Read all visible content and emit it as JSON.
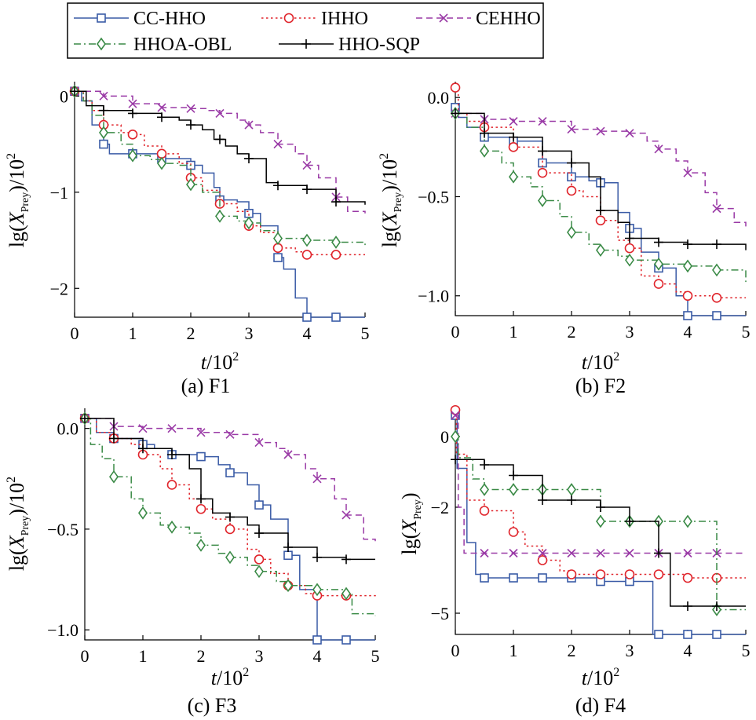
{
  "legend": {
    "entries": [
      "CC-HHO",
      "IHHO",
      "CEHHO",
      "HHOA-OBL",
      "HHO-SQP"
    ]
  },
  "series_styles": [
    {
      "name": "CC-HHO",
      "color": "#3a5ba6",
      "marker": "square",
      "dash": "solid"
    },
    {
      "name": "IHHO",
      "color": "#e0242b",
      "marker": "circle",
      "dash": "dotted"
    },
    {
      "name": "CEHHO",
      "color": "#9a3aa6",
      "marker": "x",
      "dash": "dashed"
    },
    {
      "name": "HHOA-OBL",
      "color": "#3a8a46",
      "marker": "diamond",
      "dash": "dashdot"
    },
    {
      "name": "HHO-SQP",
      "color": "#000000",
      "marker": "plus",
      "dash": "solid"
    }
  ],
  "chart_data": [
    {
      "type": "line",
      "caption": "(a) F1",
      "xlabel_var": "t",
      "xlabel_unit": "/10",
      "xlabel_exp": "2",
      "ylabel": "lg(X_Prey)/10^2",
      "ylabel_pre": "lg(",
      "ylabel_var": "X",
      "ylabel_sub": "Prey",
      "ylabel_post": ")/10",
      "ylabel_exp": "2",
      "xlim": [
        0,
        5
      ],
      "ylim": [
        -2.3,
        0.15
      ],
      "xticks": [
        0,
        1,
        2,
        3,
        4,
        5
      ],
      "xtick_labels": [
        "0",
        "1",
        "2",
        "3",
        "4",
        "5"
      ],
      "yticks": [
        0,
        -1,
        -2
      ],
      "ytick_labels": [
        "0",
        "−1",
        "−2"
      ],
      "series": [
        {
          "name": "CC-HHO",
          "x": [
            0,
            0.12,
            0.3,
            0.5,
            0.6,
            1.0,
            1.5,
            2.0,
            2.2,
            2.4,
            2.5,
            2.8,
            3.0,
            3.2,
            3.5,
            3.6,
            3.8,
            4.0,
            4.5,
            5.0
          ],
          "y": [
            0.05,
            -0.05,
            -0.3,
            -0.5,
            -0.6,
            -0.6,
            -0.65,
            -0.72,
            -0.8,
            -0.95,
            -1.08,
            -1.1,
            -1.22,
            -1.35,
            -1.68,
            -1.8,
            -2.1,
            -2.3,
            -2.3,
            -2.3
          ]
        },
        {
          "name": "IHHO",
          "x": [
            0,
            0.15,
            0.3,
            0.5,
            0.8,
            1.0,
            1.2,
            1.5,
            1.8,
            2.0,
            2.2,
            2.5,
            2.8,
            3.0,
            3.2,
            3.5,
            3.8,
            4.0,
            4.5,
            5.0
          ],
          "y": [
            0.05,
            -0.05,
            -0.15,
            -0.3,
            -0.38,
            -0.4,
            -0.52,
            -0.6,
            -0.7,
            -0.85,
            -0.98,
            -1.12,
            -1.2,
            -1.35,
            -1.42,
            -1.58,
            -1.62,
            -1.65,
            -1.65,
            -1.65
          ]
        },
        {
          "name": "CEHHO",
          "x": [
            0,
            0.5,
            1.0,
            1.5,
            2.0,
            2.3,
            2.5,
            2.8,
            3.0,
            3.2,
            3.5,
            3.8,
            4.0,
            4.2,
            4.5,
            4.7,
            5.0
          ],
          "y": [
            0.05,
            0.0,
            -0.08,
            -0.12,
            -0.13,
            -0.15,
            -0.18,
            -0.25,
            -0.3,
            -0.38,
            -0.5,
            -0.6,
            -0.72,
            -0.85,
            -1.05,
            -1.2,
            -1.22
          ]
        },
        {
          "name": "HHOA-OBL",
          "x": [
            0,
            0.15,
            0.3,
            0.5,
            0.8,
            1.0,
            1.3,
            1.5,
            1.8,
            2.0,
            2.2,
            2.5,
            2.8,
            3.0,
            3.2,
            3.5,
            4.0,
            4.5,
            5.0
          ],
          "y": [
            0.05,
            -0.05,
            -0.2,
            -0.38,
            -0.5,
            -0.62,
            -0.66,
            -0.7,
            -0.72,
            -0.92,
            -1.0,
            -1.25,
            -1.3,
            -1.32,
            -1.4,
            -1.48,
            -1.5,
            -1.52,
            -1.55
          ]
        },
        {
          "name": "HHO-SQP",
          "x": [
            0,
            0.2,
            0.5,
            1.0,
            1.5,
            1.8,
            2.0,
            2.2,
            2.4,
            2.6,
            2.8,
            3.0,
            3.3,
            3.5,
            4.0,
            4.5,
            5.0
          ],
          "y": [
            0.05,
            -0.1,
            -0.15,
            -0.18,
            -0.22,
            -0.25,
            -0.3,
            -0.35,
            -0.45,
            -0.52,
            -0.6,
            -0.65,
            -0.9,
            -0.93,
            -0.97,
            -1.1,
            -1.13
          ]
        }
      ]
    },
    {
      "type": "line",
      "caption": "(b) F2",
      "xlabel_var": "t",
      "xlabel_unit": "/10",
      "xlabel_exp": "2",
      "ylabel": "lg(X_Prey)/10^2",
      "ylabel_pre": "lg(",
      "ylabel_var": "X",
      "ylabel_sub": "Prey",
      "ylabel_post": ")/10",
      "ylabel_exp": "2",
      "xlim": [
        0,
        5
      ],
      "ylim": [
        -1.1,
        0.08
      ],
      "xticks": [
        0,
        1,
        2,
        3,
        4,
        5
      ],
      "xtick_labels": [
        "0",
        "1",
        "2",
        "3",
        "4",
        "5"
      ],
      "yticks": [
        0,
        -0.5,
        -1.0
      ],
      "ytick_labels": [
        "0.0",
        "−0.5",
        "−1.0"
      ],
      "series": [
        {
          "name": "CC-HHO",
          "x": [
            0,
            0.05,
            0.2,
            0.5,
            1.0,
            1.5,
            2.0,
            2.3,
            2.5,
            2.8,
            3.0,
            3.2,
            3.5,
            3.8,
            4.0,
            4.5,
            5.0
          ],
          "y": [
            -0.05,
            -0.1,
            -0.15,
            -0.2,
            -0.22,
            -0.33,
            -0.4,
            -0.42,
            -0.43,
            -0.58,
            -0.66,
            -0.78,
            -0.86,
            -1.0,
            -1.1,
            -1.1,
            -1.1
          ]
        },
        {
          "name": "IHHO",
          "x": [
            0,
            0.05,
            0.2,
            0.5,
            1.0,
            1.5,
            2.0,
            2.2,
            2.5,
            2.8,
            3.0,
            3.2,
            3.5,
            3.8,
            4.0,
            4.5,
            5.0
          ],
          "y": [
            0.05,
            -0.08,
            -0.12,
            -0.15,
            -0.25,
            -0.38,
            -0.47,
            -0.5,
            -0.62,
            -0.72,
            -0.76,
            -0.9,
            -0.94,
            -0.98,
            -1.0,
            -1.01,
            -1.01
          ]
        },
        {
          "name": "CEHHO",
          "x": [
            0,
            0.5,
            1.0,
            1.5,
            2.0,
            2.5,
            3.0,
            3.3,
            3.5,
            3.8,
            4.0,
            4.3,
            4.5,
            4.8,
            5.0
          ],
          "y": [
            -0.08,
            -0.11,
            -0.12,
            -0.12,
            -0.16,
            -0.17,
            -0.18,
            -0.22,
            -0.26,
            -0.32,
            -0.38,
            -0.48,
            -0.56,
            -0.63,
            -0.65
          ]
        },
        {
          "name": "HHOA-OBL",
          "x": [
            0,
            0.2,
            0.5,
            0.8,
            1.0,
            1.3,
            1.5,
            1.8,
            2.0,
            2.3,
            2.5,
            2.8,
            3.0,
            3.5,
            4.0,
            4.5,
            5.0
          ],
          "y": [
            -0.08,
            -0.15,
            -0.27,
            -0.33,
            -0.4,
            -0.45,
            -0.52,
            -0.6,
            -0.68,
            -0.74,
            -0.77,
            -0.8,
            -0.82,
            -0.84,
            -0.85,
            -0.87,
            -0.93
          ]
        },
        {
          "name": "HHO-SQP",
          "x": [
            0,
            0.5,
            1.0,
            1.5,
            2.0,
            2.3,
            2.5,
            2.8,
            3.0,
            3.5,
            4.0,
            4.5,
            5.0
          ],
          "y": [
            -0.08,
            -0.18,
            -0.2,
            -0.27,
            -0.33,
            -0.4,
            -0.57,
            -0.63,
            -0.71,
            -0.73,
            -0.74,
            -0.74,
            -0.77
          ]
        }
      ]
    },
    {
      "type": "line",
      "caption": "(c) F3",
      "xlabel_var": "t",
      "xlabel_unit": "/10",
      "xlabel_exp": "2",
      "ylabel": "lg(X_Prey)/10^2",
      "ylabel_pre": "lg(",
      "ylabel_var": "X",
      "ylabel_sub": "Prey",
      "ylabel_post": ")/10",
      "ylabel_exp": "2",
      "xlim": [
        0,
        5
      ],
      "ylim": [
        -1.05,
        0.1
      ],
      "xticks": [
        0,
        1,
        2,
        3,
        4,
        5
      ],
      "xtick_labels": [
        "0",
        "1",
        "2",
        "3",
        "4",
        "5"
      ],
      "yticks": [
        0,
        -0.5,
        -1.0
      ],
      "ytick_labels": [
        "0.0",
        "−0.5",
        "−1.0"
      ],
      "series": [
        {
          "name": "CC-HHO",
          "x": [
            0,
            0.2,
            0.5,
            1.0,
            1.2,
            1.5,
            2.0,
            2.3,
            2.5,
            2.8,
            3.0,
            3.2,
            3.5,
            3.7,
            4.0,
            4.5,
            5.0
          ],
          "y": [
            0.05,
            -0.02,
            -0.05,
            -0.08,
            -0.1,
            -0.13,
            -0.14,
            -0.18,
            -0.22,
            -0.28,
            -0.38,
            -0.45,
            -0.63,
            -0.8,
            -1.05,
            -1.05,
            -1.05
          ]
        },
        {
          "name": "IHHO",
          "x": [
            0,
            0.2,
            0.5,
            0.8,
            1.0,
            1.3,
            1.5,
            1.8,
            2.0,
            2.2,
            2.5,
            2.8,
            3.0,
            3.2,
            3.5,
            3.8,
            4.0,
            4.5,
            5.0
          ],
          "y": [
            0.05,
            -0.02,
            -0.05,
            -0.08,
            -0.13,
            -0.2,
            -0.28,
            -0.35,
            -0.4,
            -0.45,
            -0.5,
            -0.6,
            -0.65,
            -0.72,
            -0.78,
            -0.82,
            -0.83,
            -0.83,
            -0.84
          ]
        },
        {
          "name": "CEHHO",
          "x": [
            0,
            0.5,
            1.0,
            1.5,
            2.0,
            2.5,
            3.0,
            3.3,
            3.5,
            3.8,
            4.0,
            4.3,
            4.5,
            4.8,
            5.0
          ],
          "y": [
            0.05,
            0.01,
            0.0,
            0.0,
            -0.02,
            -0.03,
            -0.07,
            -0.1,
            -0.13,
            -0.2,
            -0.25,
            -0.35,
            -0.43,
            -0.55,
            -0.56
          ]
        },
        {
          "name": "HHOA-OBL",
          "x": [
            0,
            0.1,
            0.3,
            0.5,
            0.8,
            1.0,
            1.3,
            1.5,
            1.8,
            2.0,
            2.3,
            2.5,
            2.8,
            3.0,
            3.3,
            3.5,
            4.0,
            4.5,
            4.6,
            5.0
          ],
          "y": [
            0.05,
            -0.08,
            -0.15,
            -0.24,
            -0.35,
            -0.42,
            -0.48,
            -0.49,
            -0.52,
            -0.58,
            -0.62,
            -0.64,
            -0.68,
            -0.71,
            -0.76,
            -0.78,
            -0.8,
            -0.82,
            -0.92,
            -0.93
          ]
        },
        {
          "name": "HHO-SQP",
          "x": [
            0,
            0.5,
            1.0,
            1.5,
            1.8,
            2.0,
            2.2,
            2.5,
            2.8,
            3.0,
            3.5,
            4.0,
            4.5,
            5.0
          ],
          "y": [
            0.05,
            -0.05,
            -0.1,
            -0.13,
            -0.2,
            -0.35,
            -0.42,
            -0.44,
            -0.48,
            -0.52,
            -0.59,
            -0.64,
            -0.65,
            -0.65
          ]
        }
      ]
    },
    {
      "type": "line",
      "caption": "(d) F4",
      "xlabel_var": "t",
      "xlabel_unit": "/10",
      "xlabel_exp": "2",
      "ylabel": "lg(X_Prey)",
      "ylabel_pre": "lg(",
      "ylabel_var": "X",
      "ylabel_sub": "Prey",
      "ylabel_post": ")",
      "ylabel_exp": "",
      "xlim": [
        0,
        5
      ],
      "ylim": [
        -5.6,
        0.8
      ],
      "xticks": [
        0,
        1,
        2,
        3,
        4,
        5
      ],
      "xtick_labels": [
        "0",
        "1",
        "2",
        "3",
        "4",
        "5"
      ],
      "yticks": [
        0,
        -2,
        -5
      ],
      "ytick_labels": [
        "0",
        "−2",
        "−5"
      ],
      "series": [
        {
          "name": "CC-HHO",
          "x": [
            0,
            0.03,
            0.2,
            0.35,
            0.5,
            1.0,
            1.5,
            2.0,
            2.5,
            3.0,
            3.4,
            4.0,
            4.5,
            5.0
          ],
          "y": [
            0.6,
            -0.9,
            -3.0,
            -3.9,
            -4.0,
            -4.0,
            -4.0,
            -4.0,
            -4.1,
            -4.1,
            -5.6,
            -5.6,
            -5.6,
            -5.6
          ]
        },
        {
          "name": "IHHO",
          "x": [
            0,
            0.02,
            0.2,
            0.5,
            1.0,
            1.2,
            1.5,
            1.8,
            2.0,
            2.5,
            3.0,
            3.5,
            4.0,
            4.5,
            5.0
          ],
          "y": [
            0.75,
            -0.5,
            -1.8,
            -2.1,
            -2.7,
            -3.1,
            -3.5,
            -3.8,
            -3.9,
            -3.9,
            -3.9,
            -3.9,
            -4.0,
            -4.0,
            -4.0
          ]
        },
        {
          "name": "CEHHO",
          "x": [
            0,
            0.05,
            0.15,
            0.3,
            1.0,
            1.5,
            2.0,
            3.0,
            3.5,
            4.0,
            4.5,
            5.0
          ],
          "y": [
            0.6,
            -2.0,
            -3.3,
            -3.3,
            -3.3,
            -3.3,
            -3.3,
            -3.3,
            -3.3,
            -3.3,
            -3.3,
            -3.3
          ]
        },
        {
          "name": "HHOA-OBL",
          "x": [
            0,
            0.05,
            0.3,
            0.5,
            1.0,
            1.5,
            2.0,
            2.5,
            3.0,
            3.5,
            4.0,
            4.3,
            4.5,
            5.0
          ],
          "y": [
            0.0,
            -0.6,
            -1.2,
            -1.5,
            -1.5,
            -1.5,
            -1.5,
            -2.4,
            -2.4,
            -2.4,
            -2.4,
            -2.4,
            -4.9,
            -4.9
          ]
        },
        {
          "name": "HHO-SQP",
          "x": [
            0,
            0.5,
            1.0,
            1.5,
            2.0,
            2.5,
            3.0,
            3.3,
            3.5,
            3.7,
            4.0,
            4.5,
            5.0
          ],
          "y": [
            -0.65,
            -0.8,
            -1.1,
            -1.8,
            -1.8,
            -2.0,
            -2.4,
            -2.4,
            -3.3,
            -4.8,
            -4.8,
            -4.8,
            -4.8
          ]
        }
      ]
    }
  ]
}
